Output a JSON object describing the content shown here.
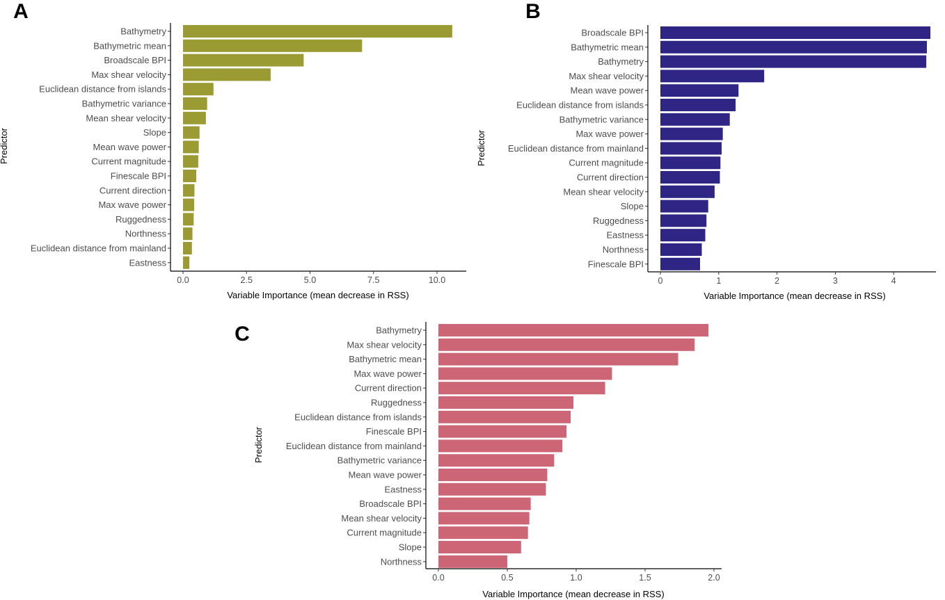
{
  "chart_data": [
    {
      "panel": "A",
      "type": "bar",
      "orientation": "horizontal",
      "color": "#9b9b33",
      "xlabel": "Variable Importance (mean decrease in RSS)",
      "ylabel": "Predictor",
      "xlim": [
        0,
        11
      ],
      "ticks": [
        0,
        2.5,
        5,
        7.5,
        10
      ],
      "tick_labels": [
        "0.0",
        "2.5",
        "5.0",
        "7.5",
        "10.0"
      ],
      "categories": [
        "Bathymetry",
        "Bathymetric mean",
        "Broadscale BPI",
        "Max shear velocity",
        "Euclidean distance from islands",
        "Bathymetric variance",
        "Mean shear velocity",
        "Slope",
        "Mean wave power",
        "Current magnitude",
        "Finescale BPI",
        "Current direction",
        "Max wave power",
        "Ruggedness",
        "Northness",
        "Euclidean distance from mainland",
        "Eastness"
      ],
      "values": [
        10.6,
        7.05,
        4.75,
        3.45,
        1.2,
        0.95,
        0.9,
        0.65,
        0.62,
        0.6,
        0.52,
        0.45,
        0.44,
        0.42,
        0.37,
        0.35,
        0.25
      ]
    },
    {
      "panel": "B",
      "type": "bar",
      "orientation": "horizontal",
      "color": "#2e2585",
      "xlabel": "Variable Importance (mean decrease in RSS)",
      "ylabel": "Predictor",
      "xlim": [
        0,
        4.75
      ],
      "ticks": [
        0,
        1,
        2,
        3,
        4
      ],
      "tick_labels": [
        "0",
        "1",
        "2",
        "3",
        "4"
      ],
      "categories": [
        "Broadscale BPI",
        "Bathymetric mean",
        "Bathymetry",
        "Max shear velocity",
        "Mean wave power",
        "Euclidean distance from islands",
        "Bathymetric variance",
        "Max wave power",
        "Euclidean distance from mainland",
        "Current magnitude",
        "Current direction",
        "Mean shear velocity",
        "Slope",
        "Ruggedness",
        "Eastness",
        "Northness",
        "Finescale BPI"
      ],
      "values": [
        4.63,
        4.57,
        4.56,
        1.78,
        1.34,
        1.29,
        1.19,
        1.07,
        1.05,
        1.03,
        1.02,
        0.93,
        0.82,
        0.79,
        0.77,
        0.71,
        0.68
      ]
    },
    {
      "panel": "C",
      "type": "bar",
      "orientation": "horizontal",
      "color": "#cc6677",
      "xlabel": "Variable Importance (mean decrease in RSS)",
      "ylabel": "Predictor",
      "xlim": [
        0,
        2.05
      ],
      "ticks": [
        0,
        0.5,
        1,
        1.5,
        2
      ],
      "tick_labels": [
        "0.0",
        "0.5",
        "1.0",
        "1.5",
        "2.0"
      ],
      "categories": [
        "Bathymetry",
        "Max shear velocity",
        "Bathymetric mean",
        "Max wave power",
        "Current direction",
        "Ruggedness",
        "Euclidean distance from islands",
        "Finescale BPI",
        "Euclidean distance from mainland",
        "Bathymetric variance",
        "Mean wave power",
        "Eastness",
        "Broadscale BPI",
        "Mean shear velocity",
        "Current magnitude",
        "Slope",
        "Northness"
      ],
      "values": [
        1.96,
        1.86,
        1.74,
        1.26,
        1.21,
        0.98,
        0.96,
        0.93,
        0.9,
        0.84,
        0.79,
        0.78,
        0.67,
        0.66,
        0.65,
        0.6,
        0.5
      ]
    }
  ]
}
